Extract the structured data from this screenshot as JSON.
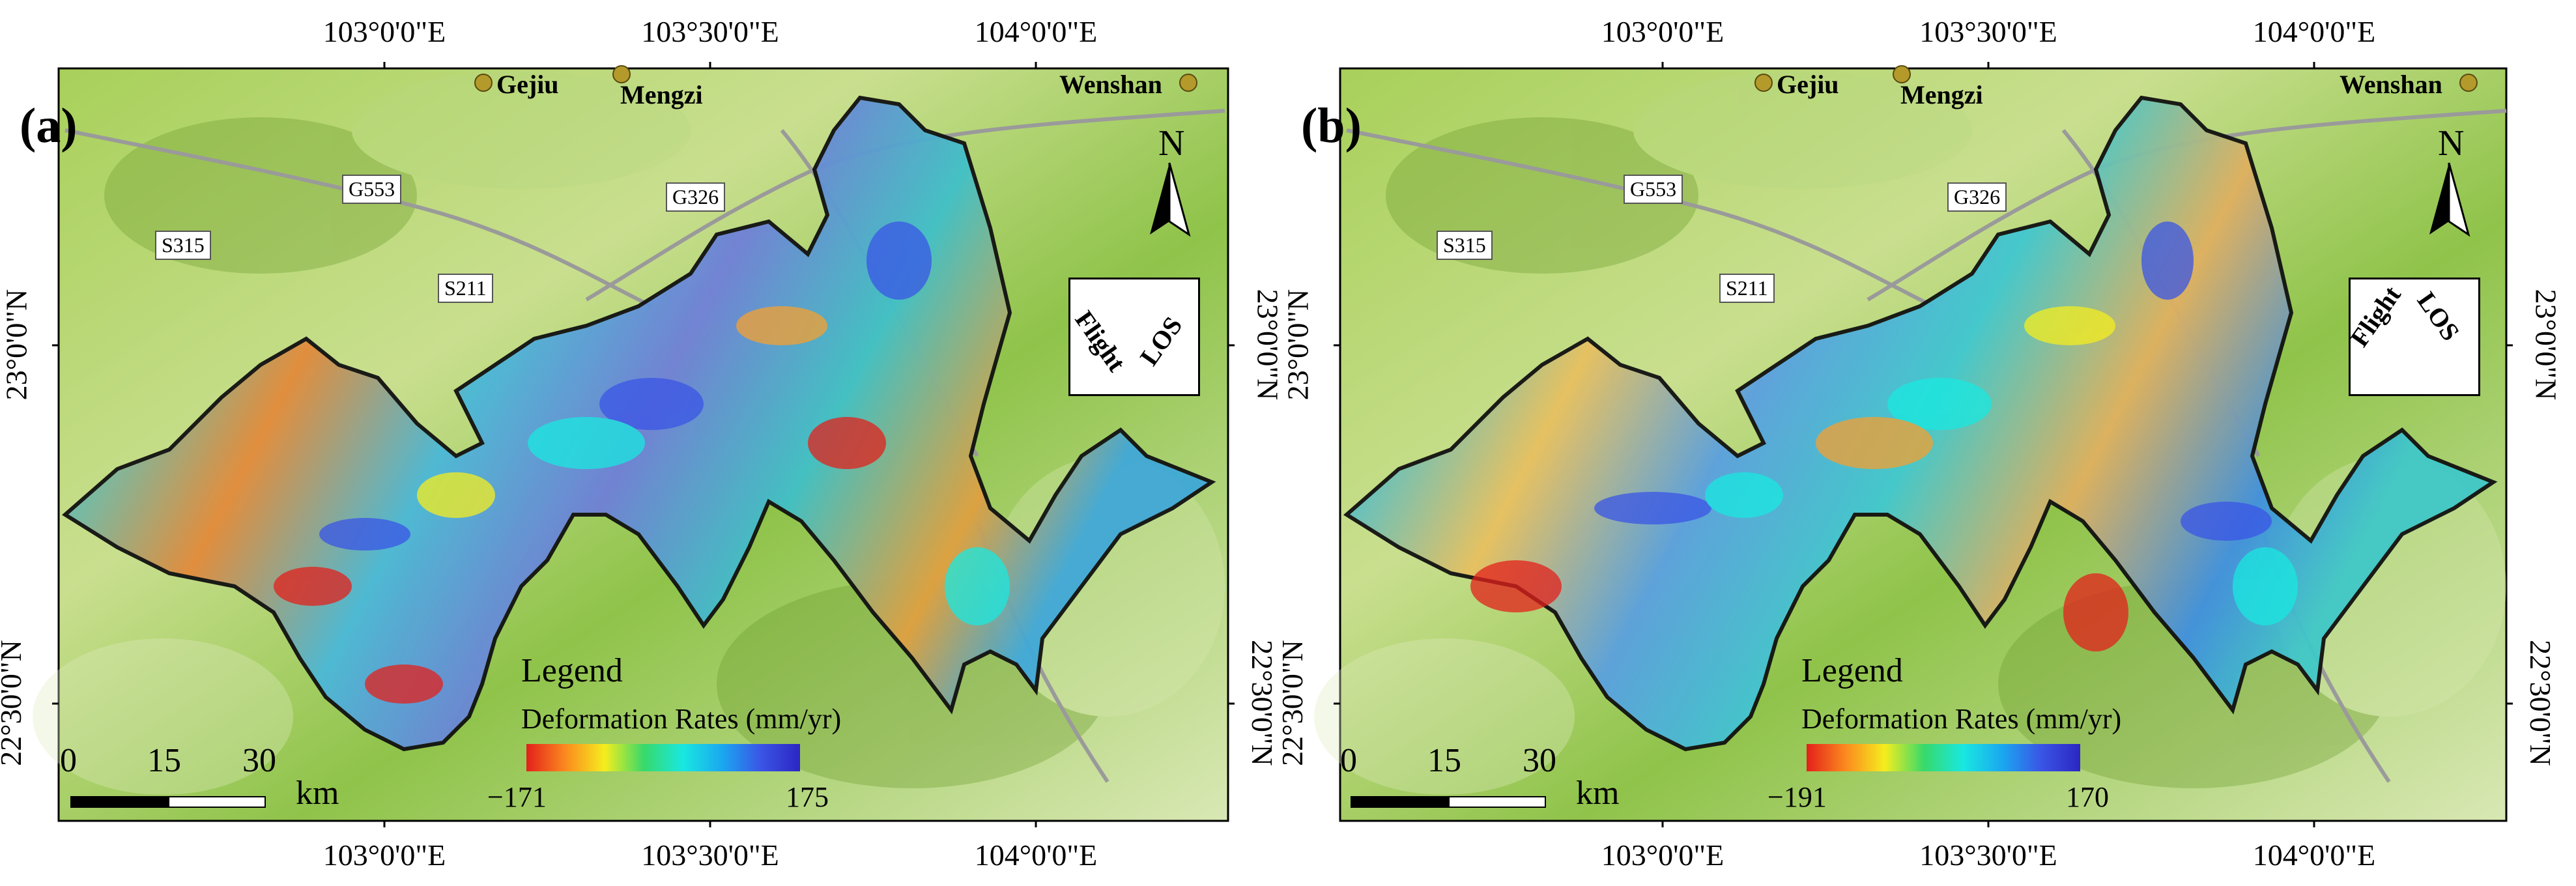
{
  "colors": {
    "terrain_green": "#8fc34a",
    "terrain_light": "#d6e6a8",
    "boundary": "#111111",
    "city_marker": "#b39a2b"
  },
  "panels": [
    {
      "letter": "(a)",
      "top_ticks": [
        "103°0'0\"E",
        "103°30'0\"E",
        "104°0'0\"E"
      ],
      "bottom_ticks": [
        "103°0'0\"E",
        "103°30'0\"E",
        "104°0'0\"E"
      ],
      "left_ticks": [
        "23°0'0\"N",
        "22°30'0\"N"
      ],
      "right_ticks": [
        "23°0'0\"N",
        "22°30'0\"N"
      ],
      "cities": [
        "Gejiu",
        "Mengzi",
        "Wenshan"
      ],
      "roads": [
        "G553",
        "G326",
        "S315",
        "S211"
      ],
      "legend": {
        "title": "Legend",
        "subtitle": "Deformation Rates (mm/yr)",
        "min": "−171",
        "max": "175"
      },
      "scale": {
        "n0": "0",
        "n1": "15",
        "n2": "30",
        "unit": "km"
      },
      "north": "N",
      "flight_label": "Flight",
      "los_label": "LOS"
    },
    {
      "letter": "(b)",
      "top_ticks": [
        "103°0'0\"E",
        "103°30'0\"E",
        "104°0'0\"E"
      ],
      "bottom_ticks": [
        "103°0'0\"E",
        "103°30'0\"E",
        "104°0'0\"E"
      ],
      "left_ticks": [
        "23°0'0\"N",
        "22°30'0\"N"
      ],
      "right_ticks": [
        "23°0'0\"N",
        "22°30'0\"N"
      ],
      "cities": [
        "Gejiu",
        "Mengzi",
        "Wenshan"
      ],
      "roads": [
        "G553",
        "G326",
        "S315",
        "S211"
      ],
      "legend": {
        "title": "Legend",
        "subtitle": "Deformation Rates (mm/yr)",
        "min": "−191",
        "max": "170"
      },
      "scale": {
        "n0": "0",
        "n1": "15",
        "n2": "30",
        "unit": "km"
      },
      "north": "N",
      "flight_label": "Flight",
      "los_label": "LOS"
    }
  ]
}
